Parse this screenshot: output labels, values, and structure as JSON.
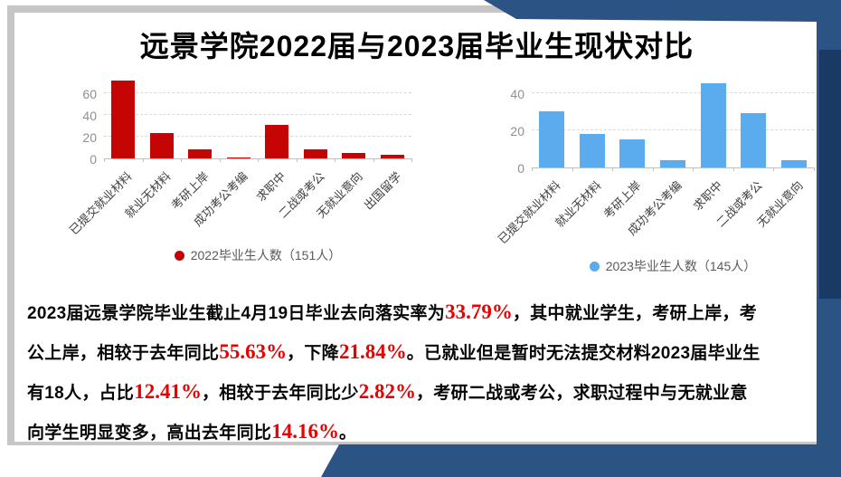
{
  "page": {
    "title": "远景学院2022届与2023届毕业生现状对比"
  },
  "colors": {
    "navy_decoration": "#2b5484",
    "navy_dark_strip": "#1a3a66",
    "series_2022_red": "#c50404",
    "series_2023_blue": "#5aacee",
    "highlight_red": "#ea0000"
  },
  "chart_data": [
    {
      "type": "bar",
      "title": "",
      "categories": [
        "已提交就业材料",
        "就业无材料",
        "考研上岸",
        "成功考公考编",
        "求职中",
        "二战或考公",
        "无就业意向",
        "出国留学"
      ],
      "values": [
        72,
        23,
        8,
        1,
        31,
        8,
        5,
        3
      ],
      "legend": "2022毕业生人数（151人）",
      "color": "#c50404",
      "xlabel": "",
      "ylabel": "",
      "yticks": [
        0,
        20,
        40,
        60
      ],
      "ylim": [
        0,
        80
      ],
      "grid": true,
      "legend_position": "bottom"
    },
    {
      "type": "bar",
      "title": "",
      "categories": [
        "已提交就业材料",
        "就业无材料",
        "考研上岸",
        "成功考公考编",
        "求职中",
        "二战或考公",
        "无就业意向"
      ],
      "values": [
        30,
        18,
        15,
        4,
        45,
        29,
        4
      ],
      "legend": "2023毕业生人数（145人）",
      "color": "#5aacee",
      "xlabel": "",
      "ylabel": "",
      "yticks": [
        0,
        20,
        40
      ],
      "ylim": [
        0,
        50
      ],
      "grid": true,
      "legend_position": "bottom"
    }
  ],
  "paragraph": {
    "lines": [
      [
        {
          "text": "2023届远景学院毕业生截止4月19日毕业去向落实率为",
          "highlight": false
        },
        {
          "text": "33.79%",
          "highlight": true
        },
        {
          "text": "，其中就业学生，考研上岸，考",
          "highlight": false
        }
      ],
      [
        {
          "text": "公上岸，相较于去年同比",
          "highlight": false
        },
        {
          "text": "55.63%",
          "highlight": true
        },
        {
          "text": "，下降",
          "highlight": false
        },
        {
          "text": "21.84%",
          "highlight": true
        },
        {
          "text": "。已就业但是暂时无法提交材料2023届毕业生",
          "highlight": false
        }
      ],
      [
        {
          "text": "有18人，占比",
          "highlight": false
        },
        {
          "text": "12.41%",
          "highlight": true
        },
        {
          "text": "，相较于去年同比少",
          "highlight": false
        },
        {
          "text": "2.82%",
          "highlight": true
        },
        {
          "text": "，考研二战或考公，求职过程中与无就业意",
          "highlight": false
        }
      ],
      [
        {
          "text": "向学生明显变多，高出去年同比",
          "highlight": false
        },
        {
          "text": "14.16%",
          "highlight": true
        },
        {
          "text": "。",
          "highlight": false
        }
      ]
    ]
  }
}
